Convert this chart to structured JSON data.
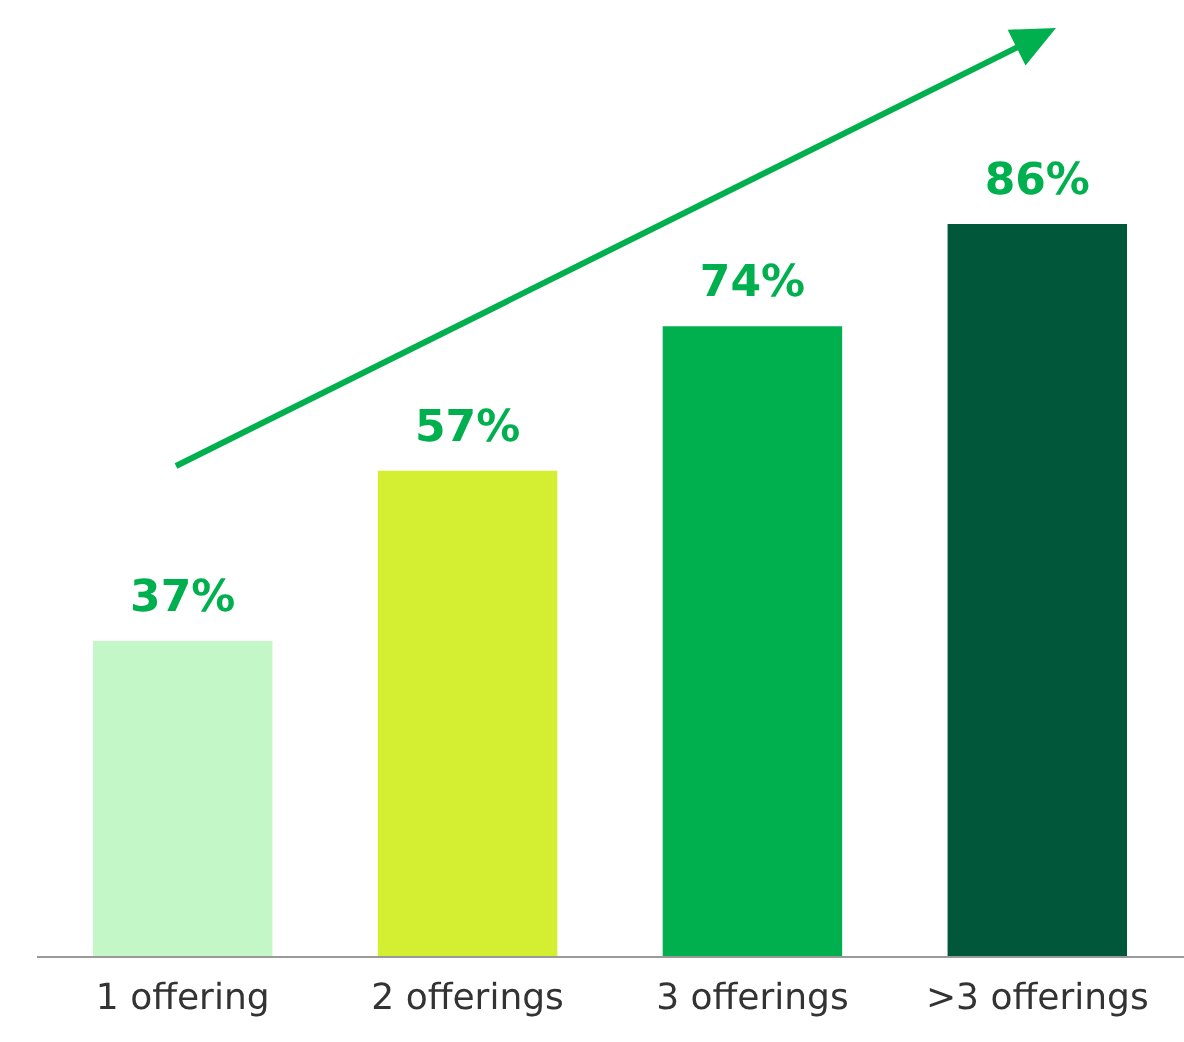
{
  "chart_data": {
    "type": "bar",
    "categories": [
      "1 offering",
      "2 offerings",
      "3 offerings",
      ">3 offerings"
    ],
    "values": [
      37,
      57,
      74,
      86
    ],
    "colors": [
      "#c3f7c8",
      "#d4ef32",
      "#00b04f",
      "#00573a"
    ],
    "value_labels": [
      "37%",
      "57%",
      "74%",
      "86%"
    ],
    "tick_labels": "x",
    "grid": false
  }
}
